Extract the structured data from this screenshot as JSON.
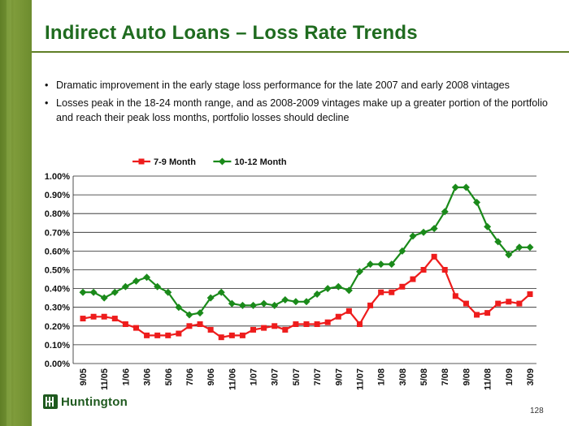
{
  "slide": {
    "title": "Indirect Auto Loans – Loss Rate Trends",
    "bullets": [
      "Dramatic improvement in the early stage loss performance for the late 2007 and early 2008 vintages",
      "Losses peak in the 18-24 month range, and as 2008-2009 vintages make up a greater portion of the portfolio and reach their peak loss months, portfolio losses should decline"
    ],
    "bullet_symbol": "•",
    "page_number": "128",
    "logo_text": "Huntington"
  },
  "colors": {
    "title": "#1f6b1f",
    "series_7_9": "#ee1c1c",
    "series_10_12": "#1a8a1a",
    "brand_green": "#5f7f26"
  },
  "chart_data": {
    "type": "line",
    "title": "",
    "xlabel": "",
    "ylabel": "",
    "ylim": [
      0,
      1.0
    ],
    "yticks": [
      "0.00%",
      "0.10%",
      "0.20%",
      "0.30%",
      "0.40%",
      "0.50%",
      "0.60%",
      "0.70%",
      "0.80%",
      "0.90%",
      "1.00%"
    ],
    "grid": true,
    "legend_position": "top-center",
    "x": [
      "9/05",
      "10/05",
      "11/05",
      "12/05",
      "1/06",
      "2/06",
      "3/06",
      "4/06",
      "5/06",
      "6/06",
      "7/06",
      "8/06",
      "9/06",
      "10/06",
      "11/06",
      "12/06",
      "1/07",
      "2/07",
      "3/07",
      "4/07",
      "5/07",
      "6/07",
      "7/07",
      "8/07",
      "9/07",
      "10/07",
      "11/07",
      "12/07",
      "1/08",
      "2/08",
      "3/08",
      "4/08",
      "5/08",
      "6/08",
      "7/08",
      "8/08",
      "9/08",
      "10/08",
      "11/08",
      "12/08",
      "1/09",
      "2/09",
      "3/09"
    ],
    "xtick_labels": [
      "9/05",
      "11/05",
      "1/06",
      "3/06",
      "5/06",
      "7/06",
      "9/06",
      "11/06",
      "1/07",
      "3/07",
      "5/07",
      "7/07",
      "9/07",
      "11/07",
      "1/08",
      "3/08",
      "5/08",
      "7/08",
      "9/08",
      "11/08",
      "1/09",
      "3/09"
    ],
    "series": [
      {
        "name": "7-9 Month",
        "color": "#ee1c1c",
        "marker": "square",
        "values": [
          0.24,
          0.25,
          0.25,
          0.24,
          0.21,
          0.19,
          0.15,
          0.15,
          0.15,
          0.16,
          0.2,
          0.21,
          0.18,
          0.14,
          0.15,
          0.15,
          0.18,
          0.19,
          0.2,
          0.18,
          0.21,
          0.21,
          0.21,
          0.22,
          0.25,
          0.28,
          0.21,
          0.31,
          0.38,
          0.38,
          0.41,
          0.45,
          0.5,
          0.57,
          0.5,
          0.36,
          0.32,
          0.26,
          0.27,
          0.32,
          0.33,
          0.32,
          0.37
        ]
      },
      {
        "name": "10-12 Month",
        "color": "#1a8a1a",
        "marker": "diamond",
        "values": [
          0.38,
          0.38,
          0.35,
          0.38,
          0.41,
          0.44,
          0.46,
          0.41,
          0.38,
          0.3,
          0.26,
          0.27,
          0.35,
          0.38,
          0.32,
          0.31,
          0.31,
          0.32,
          0.31,
          0.34,
          0.33,
          0.33,
          0.37,
          0.4,
          0.41,
          0.39,
          0.49,
          0.53,
          0.53,
          0.53,
          0.6,
          0.68,
          0.7,
          0.72,
          0.81,
          0.94,
          0.94,
          0.86,
          0.73,
          0.65,
          0.58,
          0.62,
          0.62
        ]
      }
    ]
  }
}
